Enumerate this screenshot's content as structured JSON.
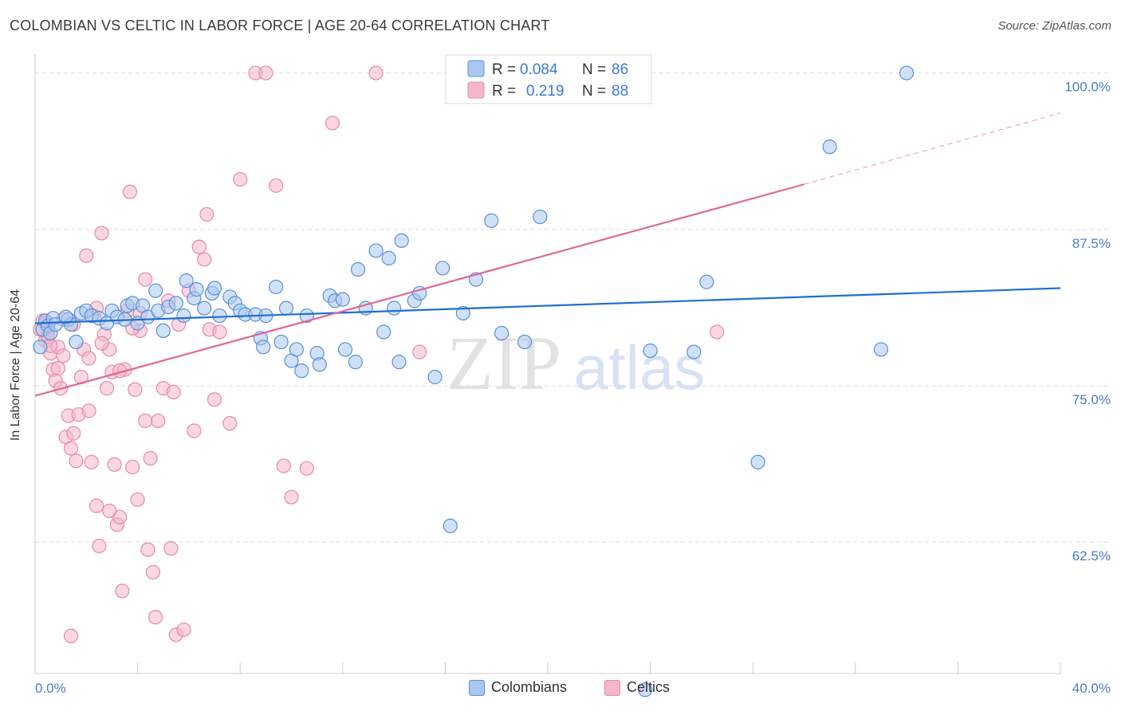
{
  "header": {
    "title": "COLOMBIAN VS CELTIC IN LABOR FORCE | AGE 20-64 CORRELATION CHART",
    "source": "Source: ZipAtlas.com"
  },
  "colors": {
    "blue_fill": "#a9c8f0",
    "blue_stroke": "#5b8fd6",
    "blue_line": "#1f6fd1",
    "pink_fill": "#f6b6ca",
    "pink_stroke": "#e58aa8",
    "pink_line": "#e0669a",
    "grid": "#dddddd",
    "tick_label": "#4a7cc9"
  },
  "legend": {
    "rows": [
      {
        "r_label": "R =",
        "r_value": "0.084",
        "n_label": "N =",
        "n_value": "86"
      },
      {
        "r_label": "R =",
        "r_value": "0.219",
        "n_label": "N =",
        "n_value": "88"
      }
    ]
  },
  "bottom_legend": [
    "Colombians",
    "Celtics"
  ],
  "watermark": {
    "zip": "ZIP",
    "atlas": "atlas"
  },
  "chart_data": {
    "type": "scatter",
    "title": "COLOMBIAN VS CELTIC IN LABOR FORCE | AGE 20-64 CORRELATION CHART",
    "xlabel": "",
    "ylabel": "In Labor Force | Age 20-64",
    "xlim": [
      0,
      40
    ],
    "ylim": [
      52,
      101.5
    ],
    "x_tick_labels": [
      "0.0%",
      "40.0%"
    ],
    "y_ticks": [
      62.5,
      75.0,
      87.5,
      100.0
    ],
    "y_tick_labels": [
      "62.5%",
      "75.0%",
      "87.5%",
      "100.0%"
    ],
    "series": [
      {
        "name": "Colombians",
        "R": 0.084,
        "N": 86,
        "trend": {
          "x0": 0,
          "y0": 80.0,
          "x1": 40,
          "y1": 82.8
        },
        "points": [
          [
            0.2,
            78.1
          ],
          [
            0.3,
            79.5
          ],
          [
            0.4,
            80.2
          ],
          [
            0.5,
            79.8
          ],
          [
            0.6,
            79.2
          ],
          [
            0.7,
            80.4
          ],
          [
            0.8,
            79.9
          ],
          [
            1.3,
            80.3
          ],
          [
            1.4,
            79.9
          ],
          [
            1.6,
            78.5
          ],
          [
            1.8,
            80.8
          ],
          [
            2.0,
            81.0
          ],
          [
            2.2,
            80.6
          ],
          [
            2.5,
            80.4
          ],
          [
            2.8,
            80.0
          ],
          [
            3.0,
            81.0
          ],
          [
            3.2,
            80.5
          ],
          [
            3.5,
            80.3
          ],
          [
            3.6,
            81.4
          ],
          [
            3.8,
            81.6
          ],
          [
            4.0,
            80.0
          ],
          [
            4.2,
            81.4
          ],
          [
            4.4,
            80.5
          ],
          [
            4.7,
            82.6
          ],
          [
            4.8,
            81.0
          ],
          [
            5.0,
            79.4
          ],
          [
            5.2,
            81.3
          ],
          [
            5.5,
            81.6
          ],
          [
            5.8,
            80.6
          ],
          [
            5.9,
            83.4
          ],
          [
            6.2,
            82.0
          ],
          [
            6.3,
            82.7
          ],
          [
            6.6,
            81.2
          ],
          [
            6.9,
            82.4
          ],
          [
            7.0,
            82.8
          ],
          [
            7.2,
            80.6
          ],
          [
            7.6,
            82.1
          ],
          [
            7.8,
            81.6
          ],
          [
            8.0,
            81.0
          ],
          [
            8.2,
            80.7
          ],
          [
            8.6,
            80.7
          ],
          [
            8.8,
            78.8
          ],
          [
            8.9,
            78.1
          ],
          [
            9.0,
            80.6
          ],
          [
            9.4,
            82.9
          ],
          [
            9.6,
            78.5
          ],
          [
            9.8,
            81.2
          ],
          [
            10.0,
            77.0
          ],
          [
            10.2,
            77.9
          ],
          [
            10.4,
            76.2
          ],
          [
            10.6,
            80.6
          ],
          [
            11.0,
            77.6
          ],
          [
            11.1,
            76.7
          ],
          [
            11.5,
            82.2
          ],
          [
            11.7,
            81.8
          ],
          [
            12.0,
            81.9
          ],
          [
            12.1,
            77.9
          ],
          [
            12.5,
            76.9
          ],
          [
            12.6,
            84.3
          ],
          [
            12.9,
            81.2
          ],
          [
            13.3,
            85.8
          ],
          [
            13.6,
            79.3
          ],
          [
            13.8,
            85.2
          ],
          [
            14.0,
            81.2
          ],
          [
            14.2,
            76.9
          ],
          [
            14.3,
            86.6
          ],
          [
            14.8,
            81.8
          ],
          [
            15.0,
            82.4
          ],
          [
            15.6,
            75.7
          ],
          [
            15.9,
            84.4
          ],
          [
            16.2,
            63.8
          ],
          [
            16.7,
            80.8
          ],
          [
            17.2,
            83.5
          ],
          [
            17.8,
            88.2
          ],
          [
            18.2,
            79.2
          ],
          [
            19.1,
            78.5
          ],
          [
            19.7,
            88.5
          ],
          [
            24.0,
            77.8
          ],
          [
            25.7,
            77.7
          ],
          [
            26.2,
            83.3
          ],
          [
            28.2,
            68.9
          ],
          [
            31.0,
            94.1
          ],
          [
            33.0,
            77.9
          ],
          [
            34.0,
            100.0
          ],
          [
            23.8,
            50.7
          ],
          [
            1.2,
            80.5
          ]
        ]
      },
      {
        "name": "Celtics",
        "R": 0.219,
        "N": 88,
        "trend": {
          "x0": 0,
          "y0": 74.2,
          "x1": 30,
          "y1": 91.1,
          "dash_to_x": 40,
          "dash_to_y": 96.8
        },
        "points": [
          [
            0.2,
            79.5
          ],
          [
            0.3,
            80.2
          ],
          [
            0.4,
            78.6
          ],
          [
            0.5,
            79.1
          ],
          [
            0.6,
            77.6
          ],
          [
            0.7,
            76.3
          ],
          [
            0.8,
            75.4
          ],
          [
            0.9,
            78.1
          ],
          [
            1.0,
            74.8
          ],
          [
            1.1,
            77.4
          ],
          [
            1.2,
            70.9
          ],
          [
            1.3,
            72.6
          ],
          [
            1.4,
            70.0
          ],
          [
            1.5,
            71.2
          ],
          [
            1.6,
            69.0
          ],
          [
            1.7,
            72.7
          ],
          [
            1.8,
            75.7
          ],
          [
            1.9,
            77.9
          ],
          [
            2.0,
            85.4
          ],
          [
            2.1,
            73.0
          ],
          [
            2.2,
            68.9
          ],
          [
            2.3,
            80.6
          ],
          [
            2.4,
            65.4
          ],
          [
            2.5,
            62.2
          ],
          [
            2.6,
            87.2
          ],
          [
            2.7,
            79.1
          ],
          [
            2.8,
            74.8
          ],
          [
            2.9,
            77.9
          ],
          [
            3.0,
            76.1
          ],
          [
            3.1,
            68.7
          ],
          [
            3.2,
            63.9
          ],
          [
            3.3,
            64.5
          ],
          [
            3.4,
            58.6
          ],
          [
            3.5,
            76.3
          ],
          [
            3.6,
            81.0
          ],
          [
            3.7,
            90.5
          ],
          [
            3.8,
            68.5
          ],
          [
            3.9,
            74.7
          ],
          [
            4.0,
            65.9
          ],
          [
            4.1,
            79.4
          ],
          [
            4.3,
            83.5
          ],
          [
            4.4,
            61.9
          ],
          [
            4.5,
            69.2
          ],
          [
            4.6,
            60.1
          ],
          [
            4.7,
            56.5
          ],
          [
            4.8,
            72.2
          ],
          [
            5.0,
            74.8
          ],
          [
            5.2,
            81.8
          ],
          [
            5.3,
            62.0
          ],
          [
            5.5,
            55.1
          ],
          [
            5.6,
            79.9
          ],
          [
            5.8,
            55.5
          ],
          [
            6.0,
            82.6
          ],
          [
            6.2,
            71.4
          ],
          [
            6.4,
            86.1
          ],
          [
            6.6,
            85.1
          ],
          [
            6.8,
            79.5
          ],
          [
            7.0,
            73.9
          ],
          [
            7.2,
            79.3
          ],
          [
            7.6,
            72.0
          ],
          [
            8.0,
            91.5
          ],
          [
            8.6,
            100.0
          ],
          [
            9.0,
            100.0
          ],
          [
            9.4,
            91.0
          ],
          [
            9.7,
            68.6
          ],
          [
            10.0,
            66.1
          ],
          [
            10.6,
            68.4
          ],
          [
            11.6,
            96.0
          ],
          [
            13.3,
            100.0
          ],
          [
            15.0,
            77.7
          ],
          [
            26.6,
            79.3
          ],
          [
            0.5,
            78.9
          ],
          [
            0.9,
            76.4
          ],
          [
            1.5,
            79.9
          ],
          [
            2.6,
            78.4
          ],
          [
            3.3,
            76.2
          ],
          [
            4.3,
            72.2
          ],
          [
            2.1,
            77.2
          ],
          [
            0.4,
            80.0
          ],
          [
            1.4,
            55.0
          ],
          [
            2.9,
            65.0
          ],
          [
            3.8,
            79.6
          ],
          [
            5.4,
            74.5
          ],
          [
            6.7,
            88.7
          ],
          [
            0.6,
            78.2
          ],
          [
            1.1,
            80.3
          ],
          [
            2.4,
            81.2
          ],
          [
            4.1,
            80.8
          ]
        ]
      }
    ]
  }
}
